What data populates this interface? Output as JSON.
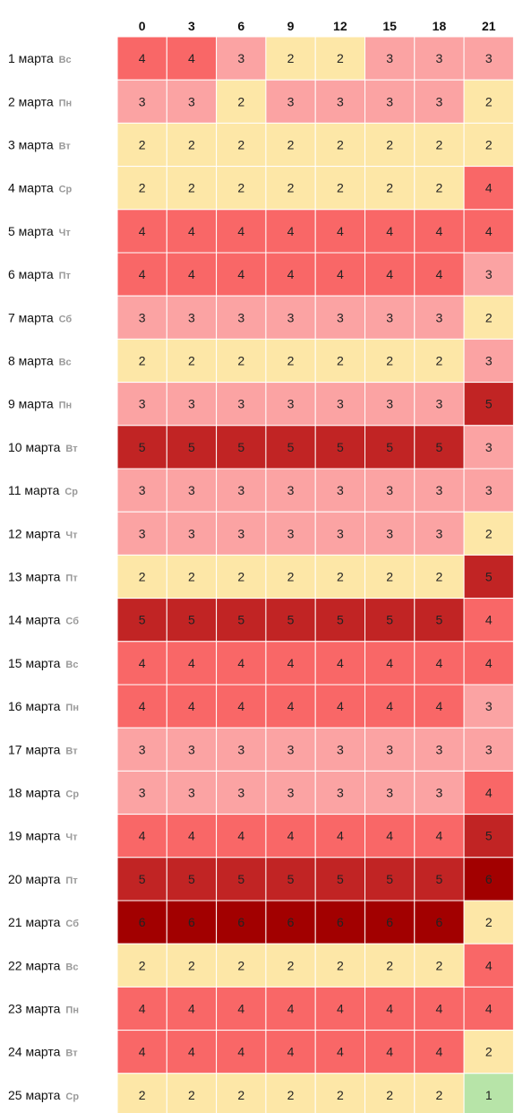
{
  "chart_data": {
    "type": "heatmap",
    "columns": [
      "0",
      "3",
      "6",
      "9",
      "12",
      "15",
      "18",
      "21"
    ],
    "rows": [
      {
        "date": "1 марта",
        "day": "Вс",
        "values": [
          4,
          4,
          3,
          2,
          2,
          3,
          3,
          3
        ]
      },
      {
        "date": "2 марта",
        "day": "Пн",
        "values": [
          3,
          3,
          2,
          3,
          3,
          3,
          3,
          2
        ]
      },
      {
        "date": "3 марта",
        "day": "Вт",
        "values": [
          2,
          2,
          2,
          2,
          2,
          2,
          2,
          2
        ]
      },
      {
        "date": "4 марта",
        "day": "Ср",
        "values": [
          2,
          2,
          2,
          2,
          2,
          2,
          2,
          4
        ]
      },
      {
        "date": "5 марта",
        "day": "Чт",
        "values": [
          4,
          4,
          4,
          4,
          4,
          4,
          4,
          4
        ]
      },
      {
        "date": "6 марта",
        "day": "Пт",
        "values": [
          4,
          4,
          4,
          4,
          4,
          4,
          4,
          3
        ]
      },
      {
        "date": "7 марта",
        "day": "Сб",
        "values": [
          3,
          3,
          3,
          3,
          3,
          3,
          3,
          2
        ]
      },
      {
        "date": "8 марта",
        "day": "Вс",
        "values": [
          2,
          2,
          2,
          2,
          2,
          2,
          2,
          3
        ]
      },
      {
        "date": "9 марта",
        "day": "Пн",
        "values": [
          3,
          3,
          3,
          3,
          3,
          3,
          3,
          5
        ]
      },
      {
        "date": "10 марта",
        "day": "Вт",
        "values": [
          5,
          5,
          5,
          5,
          5,
          5,
          5,
          3
        ]
      },
      {
        "date": "11 марта",
        "day": "Ср",
        "values": [
          3,
          3,
          3,
          3,
          3,
          3,
          3,
          3
        ]
      },
      {
        "date": "12 марта",
        "day": "Чт",
        "values": [
          3,
          3,
          3,
          3,
          3,
          3,
          3,
          2
        ]
      },
      {
        "date": "13 марта",
        "day": "Пт",
        "values": [
          2,
          2,
          2,
          2,
          2,
          2,
          2,
          5
        ]
      },
      {
        "date": "14 марта",
        "day": "Сб",
        "values": [
          5,
          5,
          5,
          5,
          5,
          5,
          5,
          4
        ]
      },
      {
        "date": "15 марта",
        "day": "Вс",
        "values": [
          4,
          4,
          4,
          4,
          4,
          4,
          4,
          4
        ]
      },
      {
        "date": "16 марта",
        "day": "Пн",
        "values": [
          4,
          4,
          4,
          4,
          4,
          4,
          4,
          3
        ]
      },
      {
        "date": "17 марта",
        "day": "Вт",
        "values": [
          3,
          3,
          3,
          3,
          3,
          3,
          3,
          3
        ]
      },
      {
        "date": "18 марта",
        "day": "Ср",
        "values": [
          3,
          3,
          3,
          3,
          3,
          3,
          3,
          4
        ]
      },
      {
        "date": "19 марта",
        "day": "Чт",
        "values": [
          4,
          4,
          4,
          4,
          4,
          4,
          4,
          5
        ]
      },
      {
        "date": "20 марта",
        "day": "Пт",
        "values": [
          5,
          5,
          5,
          5,
          5,
          5,
          5,
          6
        ]
      },
      {
        "date": "21 марта",
        "day": "Сб",
        "values": [
          6,
          6,
          6,
          6,
          6,
          6,
          6,
          2
        ]
      },
      {
        "date": "22 марта",
        "day": "Вс",
        "values": [
          2,
          2,
          2,
          2,
          2,
          2,
          2,
          4
        ]
      },
      {
        "date": "23 марта",
        "day": "Пн",
        "values": [
          4,
          4,
          4,
          4,
          4,
          4,
          4,
          4
        ]
      },
      {
        "date": "24 марта",
        "day": "Вт",
        "values": [
          4,
          4,
          4,
          4,
          4,
          4,
          4,
          2
        ]
      },
      {
        "date": "25 марта",
        "day": "Ср",
        "values": [
          2,
          2,
          2,
          2,
          2,
          2,
          2,
          1
        ]
      }
    ],
    "color_scale": {
      "1": "#b7e4a8",
      "2": "#fde7a7",
      "3": "#fba3a3",
      "4": "#f96767",
      "5": "#c12424",
      "6": "#a20000"
    }
  }
}
